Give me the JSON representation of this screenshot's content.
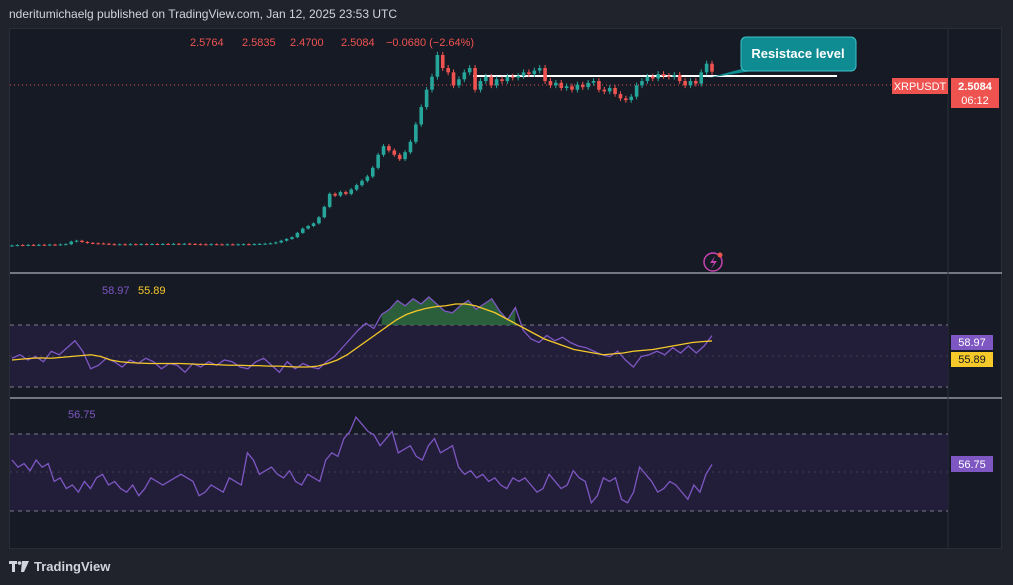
{
  "header": {
    "text": "nderitumichaelg published on TradingView.com, Jan 12, 2025 23:53 UTC"
  },
  "footer": {
    "brand": "TradingView"
  },
  "ohlc": {
    "open": "2.5764",
    "high": "2.5835",
    "low": "2.4700",
    "close": "2.5084",
    "change": "−0.0680 (−2.64%)"
  },
  "annotation": {
    "text": "Resistace level"
  },
  "price_label": {
    "symbol": "XRPUSDT",
    "price": "2.5084",
    "countdown": "06:12"
  },
  "rsi": {
    "value_a": "58.97",
    "value_b": "55.89"
  },
  "osc": {
    "value": "56.75"
  },
  "colors": {
    "up": "#26a69a",
    "down": "#ef5350",
    "rsi": "#7e57c2",
    "rsi_ma": "#f5c92a",
    "fill_green": "#2f6b3f",
    "annotation": "#0f8b92"
  },
  "chart_data": [
    {
      "type": "candlestick",
      "title": "XRPUSDT",
      "resistance_level": 2.58,
      "current_price": 2.5084,
      "closes": [
        0.505,
        0.51,
        0.508,
        0.512,
        0.509,
        0.513,
        0.511,
        0.515,
        0.512,
        0.518,
        0.52,
        0.55,
        0.56,
        0.545,
        0.535,
        0.53,
        0.528,
        0.525,
        0.52,
        0.518,
        0.519,
        0.517,
        0.52,
        0.518,
        0.521,
        0.519,
        0.522,
        0.52,
        0.523,
        0.521,
        0.524,
        0.522,
        0.525,
        0.523,
        0.52,
        0.519,
        0.517,
        0.52,
        0.518,
        0.516,
        0.518,
        0.516,
        0.518,
        0.52,
        0.518,
        0.521,
        0.523,
        0.526,
        0.53,
        0.54,
        0.56,
        0.58,
        0.6,
        0.65,
        0.7,
        0.73,
        0.76,
        0.83,
        0.95,
        1.1,
        1.08,
        1.12,
        1.1,
        1.15,
        1.2,
        1.25,
        1.3,
        1.4,
        1.55,
        1.65,
        1.6,
        1.55,
        1.5,
        1.58,
        1.7,
        1.9,
        2.1,
        2.3,
        2.45,
        2.7,
        2.55,
        2.5,
        2.35,
        2.42,
        2.5,
        2.55,
        2.3,
        2.4,
        2.45,
        2.35,
        2.42,
        2.4,
        2.45,
        2.44,
        2.46,
        2.5,
        2.48,
        2.52,
        2.55,
        2.4,
        2.35,
        2.38,
        2.32,
        2.34,
        2.3,
        2.36,
        2.33,
        2.38,
        2.4,
        2.3,
        2.28,
        2.32,
        2.25,
        2.2,
        2.18,
        2.22,
        2.35,
        2.4,
        2.45,
        2.43,
        2.48,
        2.46,
        2.45,
        2.47,
        2.4,
        2.35,
        2.4,
        2.37,
        2.5,
        2.6,
        2.5084
      ]
    },
    {
      "type": "line",
      "series": [
        {
          "name": "58.97",
          "values": [
            46,
            48,
            45,
            47,
            44,
            50,
            48,
            52,
            56,
            50,
            40,
            42,
            46,
            44,
            41,
            45,
            43,
            46,
            44,
            40,
            43,
            42,
            38,
            43,
            41,
            44,
            42,
            45,
            44,
            41,
            40,
            44,
            46,
            42,
            38,
            44,
            40,
            43,
            41,
            40,
            44,
            47,
            52,
            57,
            62,
            66,
            63,
            71,
            74,
            79,
            76,
            80,
            77,
            81,
            77,
            73,
            72,
            76,
            79,
            74,
            77,
            80,
            73,
            68,
            75,
            62,
            57,
            55,
            59,
            56,
            58,
            55,
            53,
            52,
            50,
            48,
            47,
            50,
            45,
            41,
            47,
            48,
            50,
            48,
            52,
            49,
            53,
            49,
            53,
            58.97
          ]
        },
        {
          "name": "55.89",
          "values": [
            45,
            45.5,
            46,
            46.2,
            46,
            46.5,
            47,
            47.5,
            48,
            47,
            45,
            44,
            43.5,
            43.2,
            43,
            43,
            43,
            43,
            42.8,
            42.5,
            42.5,
            42.3,
            42,
            42,
            41.8,
            41.8,
            41.5,
            41.5,
            41.2,
            41,
            41,
            41.5,
            43,
            45,
            48,
            52,
            56,
            60,
            64,
            68,
            71,
            73,
            74.5,
            75.5,
            76,
            77,
            77,
            76,
            74,
            72,
            69,
            66,
            63,
            60,
            57,
            55,
            53,
            51,
            50,
            49,
            48,
            48.5,
            49,
            50,
            50.5,
            51,
            52,
            53,
            54,
            55,
            55.5,
            55.89
          ]
        }
      ]
    },
    {
      "type": "line",
      "series": [
        {
          "name": "56.75",
          "values": [
            58,
            56,
            57,
            55,
            58,
            56,
            57,
            52,
            53,
            50,
            51,
            49,
            52,
            50,
            53,
            54,
            51,
            52,
            50,
            49,
            51,
            48,
            50,
            53,
            52,
            51,
            52,
            53,
            54,
            53,
            52,
            48,
            49,
            51,
            50,
            49,
            53,
            52,
            51,
            60,
            58,
            54,
            55,
            56,
            54,
            53,
            55,
            52,
            51,
            54,
            53,
            52,
            58,
            60,
            59,
            64,
            66,
            70,
            68,
            66,
            65,
            62,
            64,
            66,
            60,
            61,
            62,
            59,
            58,
            62,
            64,
            60,
            61,
            62,
            56,
            54,
            55,
            53,
            54,
            52,
            53,
            51,
            50,
            53,
            52,
            53,
            51,
            49,
            50,
            54,
            52,
            50,
            51,
            55,
            53,
            52,
            46,
            48,
            53,
            52,
            53,
            47,
            46,
            49,
            56,
            54,
            52,
            49,
            50,
            52,
            51,
            49,
            47,
            51,
            49,
            54,
            56.75
          ]
        }
      ]
    }
  ]
}
